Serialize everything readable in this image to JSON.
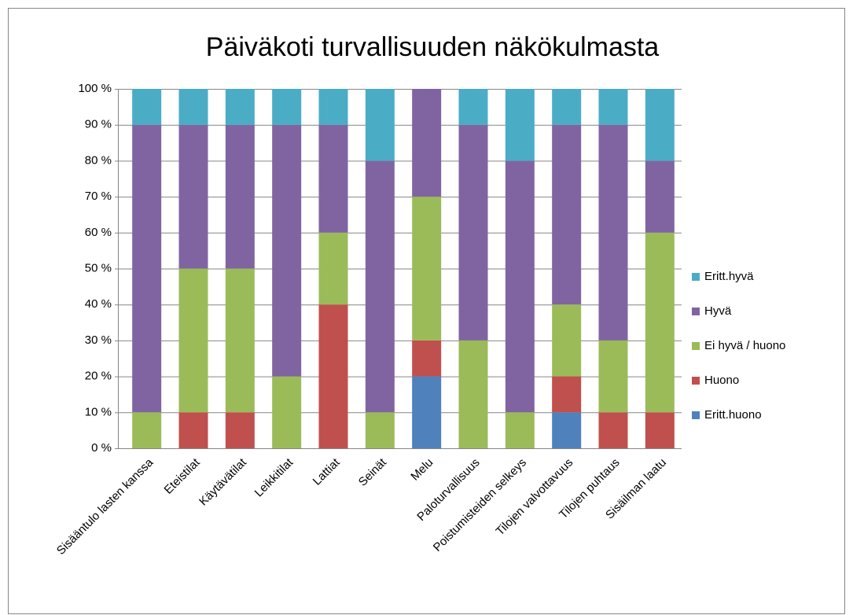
{
  "chart_data": {
    "type": "stacked_bar",
    "title": "Päiväkoti turvallisuuden näkökulmasta",
    "categories": [
      "Sisääntulo lasten kanssa",
      "Eteistilat",
      "Käytävätilat",
      "Leikkitilat",
      "Lattiat",
      "Seinät",
      "Melu",
      "Paloturvallisuus",
      "Poistumisteiden selkeys",
      "Tilojen valvottavuus",
      "Tilojen puhtaus",
      "Sisäilman laatu"
    ],
    "series": [
      {
        "name": "Eritt.huono",
        "color": "#4f81bd",
        "values": [
          0,
          0,
          0,
          0,
          0,
          0,
          20,
          0,
          0,
          10,
          0,
          0
        ]
      },
      {
        "name": "Huono",
        "color": "#c0504d",
        "values": [
          0,
          10,
          10,
          0,
          40,
          0,
          10,
          0,
          0,
          10,
          10,
          10
        ]
      },
      {
        "name": "Ei hyvä / huono",
        "color": "#9bbb59",
        "values": [
          10,
          40,
          40,
          20,
          20,
          10,
          40,
          30,
          10,
          20,
          20,
          50
        ]
      },
      {
        "name": "Hyvä",
        "color": "#8064a2",
        "values": [
          80,
          40,
          40,
          70,
          30,
          70,
          30,
          60,
          70,
          50,
          60,
          20
        ]
      },
      {
        "name": "Eritt.hyvä",
        "color": "#4bacc6",
        "values": [
          10,
          10,
          10,
          10,
          10,
          20,
          0,
          10,
          20,
          10,
          10,
          20
        ]
      }
    ],
    "ylim": [
      0,
      100
    ],
    "yticks": [
      {
        "value": 0,
        "label": "0 %"
      },
      {
        "value": 10,
        "label": "10 %"
      },
      {
        "value": 20,
        "label": "20 %"
      },
      {
        "value": 30,
        "label": "30 %"
      },
      {
        "value": 40,
        "label": "40 %"
      },
      {
        "value": 50,
        "label": "50 %"
      },
      {
        "value": 60,
        "label": "60 %"
      },
      {
        "value": 70,
        "label": "70 %"
      },
      {
        "value": 80,
        "label": "80 %"
      },
      {
        "value": 90,
        "label": "90 %"
      },
      {
        "value": 100,
        "label": "100 %"
      }
    ],
    "grid": true,
    "legend": "right"
  }
}
